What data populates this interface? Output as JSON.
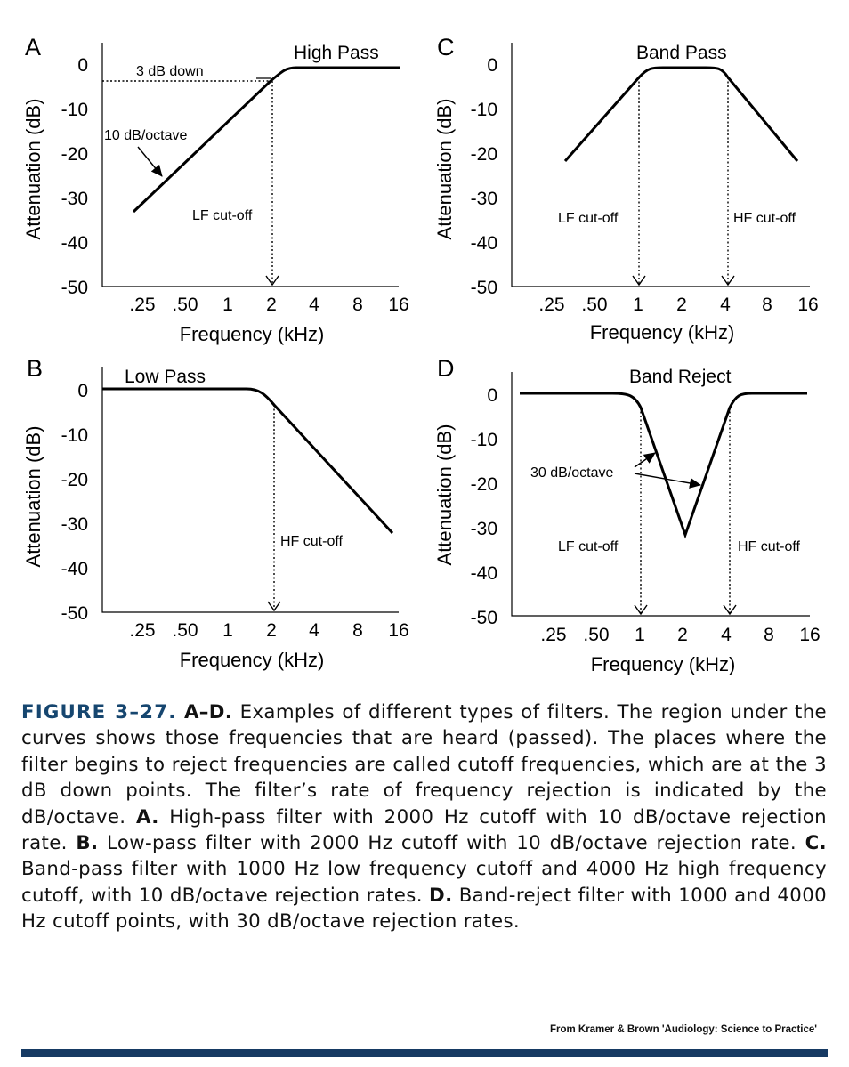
{
  "chart_data": [
    {
      "panel": "A",
      "type": "line",
      "title": "High Pass",
      "xlabel": "Frequency (kHz)",
      "ylabel": "Attenuation (dB)",
      "x_ticks": [
        ".25",
        ".50",
        "1",
        "2",
        "4",
        "8",
        "16"
      ],
      "y_ticks": [
        "0",
        "-10",
        "-20",
        "-30",
        "-40",
        "-50"
      ],
      "ylim": [
        -50,
        0
      ],
      "x_scale": "log (octaves)",
      "series": [
        {
          "x": [
            0.25,
            2,
            2.8,
            16
          ],
          "y": [
            -33,
            -3,
            0,
            0
          ]
        }
      ],
      "annotations": [
        "3 dB down",
        "10 dB/octave",
        "LF cut-off"
      ]
    },
    {
      "panel": "B",
      "type": "line",
      "title": "Low Pass",
      "xlabel": "Frequency (kHz)",
      "ylabel": "Attenuation (dB)",
      "x_ticks": [
        ".25",
        ".50",
        "1",
        "2",
        "4",
        "8",
        "16"
      ],
      "y_ticks": [
        "0",
        "-10",
        "-20",
        "-30",
        "-40",
        "-50"
      ],
      "ylim": [
        -50,
        0
      ],
      "x_scale": "log (octaves)",
      "series": [
        {
          "x": [
            0.125,
            1.4,
            2,
            15
          ],
          "y": [
            0,
            0,
            -3,
            -32
          ]
        }
      ],
      "annotations": [
        "HF cut-off"
      ]
    },
    {
      "panel": "C",
      "type": "line",
      "title": "Band Pass",
      "xlabel": "Frequency (kHz)",
      "ylabel": "Attenuation (dB)",
      "x_ticks": [
        ".25",
        ".50",
        "1",
        "2",
        "4",
        "8",
        "16"
      ],
      "y_ticks": [
        "0",
        "-10",
        "-20",
        "-30",
        "-40",
        "-50"
      ],
      "ylim": [
        -50,
        0
      ],
      "x_scale": "log (octaves)",
      "series": [
        {
          "x": [
            0.35,
            1,
            1.4,
            2.8,
            4,
            14
          ],
          "y": [
            -22,
            -3,
            0,
            0,
            -3,
            -22
          ]
        }
      ],
      "annotations": [
        "LF cut-off",
        "HF cut-off"
      ]
    },
    {
      "panel": "D",
      "type": "line",
      "title": "Band Reject",
      "xlabel": "Frequency (kHz)",
      "ylabel": "Attenuation (dB)",
      "x_ticks": [
        ".25",
        ".50",
        "1",
        "2",
        "4",
        "8",
        "16"
      ],
      "y_ticks": [
        "0",
        "-10",
        "-20",
        "-30",
        "-40",
        "-50"
      ],
      "ylim": [
        -50,
        0
      ],
      "x_scale": "log (octaves)",
      "series": [
        {
          "x": [
            0.125,
            0.7,
            1,
            2.05,
            4,
            5.3,
            16
          ],
          "y": [
            0,
            0,
            -3,
            -32,
            -3,
            0,
            0
          ]
        }
      ],
      "annotations": [
        "30 dB/octave",
        "LF cut-off",
        "HF cut-off"
      ]
    }
  ],
  "panels": {
    "A": {
      "letter": "A",
      "title": "High Pass",
      "xlabel": "Frequency (kHz)",
      "ylabel": "Attenuation (dB)",
      "x_ticks": [
        ".25",
        ".50",
        "1",
        "2",
        "4",
        "8",
        "16"
      ],
      "y_ticks": [
        "0",
        "-10",
        "-20",
        "-30",
        "-40",
        "-50"
      ],
      "annotations": {
        "db_down": "3 dB down",
        "slope": "10 dB/octave",
        "lf_cutoff": "LF cut-off"
      }
    },
    "B": {
      "letter": "B",
      "title": "Low Pass",
      "xlabel": "Frequency (kHz)",
      "ylabel": "Attenuation (dB)",
      "x_ticks": [
        ".25",
        ".50",
        "1",
        "2",
        "4",
        "8",
        "16"
      ],
      "y_ticks": [
        "0",
        "-10",
        "-20",
        "-30",
        "-40",
        "-50"
      ],
      "annotations": {
        "hf_cutoff": "HF cut-off"
      }
    },
    "C": {
      "letter": "C",
      "title": "Band Pass",
      "xlabel": "Frequency (kHz)",
      "ylabel": "Attenuation (dB)",
      "x_ticks": [
        ".25",
        ".50",
        "1",
        "2",
        "4",
        "8",
        "16"
      ],
      "y_ticks": [
        "0",
        "-10",
        "-20",
        "-30",
        "-40",
        "-50"
      ],
      "annotations": {
        "lf_cutoff": "LF cut-off",
        "hf_cutoff": "HF cut-off"
      }
    },
    "D": {
      "letter": "D",
      "title": "Band Reject",
      "xlabel": "Frequency (kHz)",
      "ylabel": "Attenuation (dB)",
      "x_ticks": [
        ".25",
        ".50",
        "1",
        "2",
        "4",
        "8",
        "16"
      ],
      "y_ticks": [
        "0",
        "-10",
        "-20",
        "-30",
        "-40",
        "-50"
      ],
      "annotations": {
        "slope": "30 dB/octave",
        "lf_cutoff": "LF cut-off",
        "hf_cutoff": "HF cut-off"
      }
    }
  },
  "caption": {
    "figure_label": "FIGURE 3–27.",
    "lead_label": "A–D.",
    "intro": " Examples of different types of filters. The region under the curves shows those frequencies that are heard (passed). The places where the filter begins to reject frequencies are called cutoff frequencies, which are at the 3 dB down points. The filter’s rate of frequency rejection is indicated by the dB/octave. ",
    "a_label": "A.",
    "a_text": " High-pass filter with 2000 Hz cutoff with 10 dB/octave rejection rate. ",
    "b_label": "B.",
    "b_text": " Low-pass filter with 2000 Hz cutoff with 10 dB/octave rejection rate. ",
    "c_label": "C.",
    "c_text": " Band-pass filter with 1000 Hz low frequency cutoff and 4000 Hz high frequency cutoff, with 10 dB/octave rejection rates. ",
    "d_label": "D.",
    "d_text": " Band-reject filter with 1000 and 4000 Hz cutoff points, with 30 dB/octave rejection rates."
  },
  "credit": "From Kramer & Brown 'Audiology: Science to Practice'"
}
